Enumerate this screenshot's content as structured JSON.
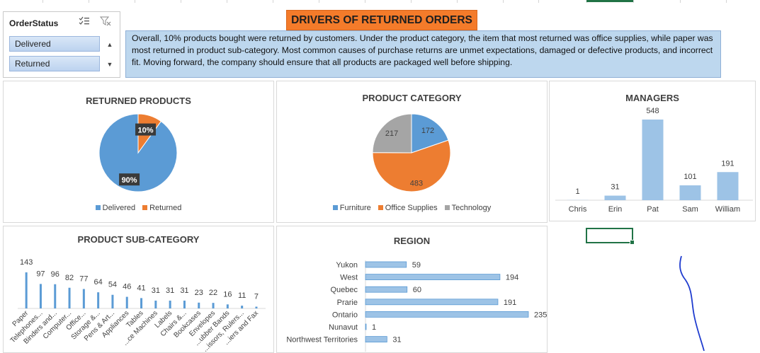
{
  "slicer": {
    "title": "OrderStatus",
    "icons": [
      "multi-select-icon",
      "clear-filter-icon"
    ],
    "items": [
      "Delivered",
      "Returned"
    ]
  },
  "header": {
    "title": "DRIVERS OF RETURNED ORDERS"
  },
  "summary": "Overall, 10% products bought were returned by customers. Under the product category, the item that  most returned was office supplies, while paper was most returned in product sub-category. Most common causes of purchase returns are unmet expectations, damaged or defective products, and incorrect fit. Moving forward, the company should ensure that all products are packaged well before shipping.",
  "colors": {
    "blue": "#5b9bd5",
    "orange": "#ed7d31",
    "gray": "#a5a5a5",
    "accent": "#217346"
  },
  "chart_data": [
    {
      "type": "pie",
      "title": "RETURNED PRODUCTS",
      "labels": [
        "Delivered",
        "Returned"
      ],
      "values": [
        90,
        10
      ],
      "data_labels": [
        "90%",
        "10%"
      ],
      "legend": "bottom"
    },
    {
      "type": "pie",
      "title": "PRODUCT CATEGORY",
      "labels": [
        "Furniture",
        "Office Supplies",
        "Technology"
      ],
      "values": [
        172,
        483,
        217
      ],
      "data_labels": [
        "172",
        "483",
        "217"
      ],
      "legend": "bottom"
    },
    {
      "type": "bar",
      "title": "MANAGERS",
      "categories": [
        "Chris",
        "Erin",
        "Pat",
        "Sam",
        "William"
      ],
      "values": [
        1,
        31,
        548,
        101,
        191
      ],
      "data_labels": [
        "1",
        "31",
        "548",
        "101",
        "191"
      ],
      "ylim": [
        0,
        548
      ]
    },
    {
      "type": "bar",
      "title": "PRODUCT SUB-CATEGORY",
      "categories": [
        "Paper",
        "Telephones...",
        "Binders and...",
        "Computer...",
        "Office...",
        "Storage &...",
        "Pens & Art...",
        "Appliances",
        "Tables",
        "...ce Machines",
        "Labels",
        "Chairs &...",
        "Bookcases",
        "Envelopes",
        "...ubber Bands",
        "...issors, Rulers...",
        "...iers and Fax"
      ],
      "values": [
        143,
        97,
        96,
        82,
        77,
        64,
        54,
        46,
        41,
        31,
        31,
        31,
        23,
        22,
        16,
        11,
        7
      ],
      "data_labels": [
        "143",
        "97",
        "96",
        "82",
        "77",
        "64",
        "54",
        "46",
        "41",
        "31",
        "31",
        "31",
        "23",
        "22",
        "16",
        "11",
        "7"
      ],
      "ylim": [
        0,
        143
      ]
    },
    {
      "type": "bar",
      "orientation": "horizontal",
      "title": "REGION",
      "categories": [
        "Yukon",
        "West",
        "Quebec",
        "Prarie",
        "Ontario",
        "Nunavut",
        "Northwest Territories"
      ],
      "values": [
        59,
        194,
        60,
        191,
        235,
        1,
        31
      ],
      "data_labels": [
        "59",
        "194",
        "60",
        "191",
        "235",
        "1",
        "31"
      ],
      "xlim": [
        0,
        235
      ]
    }
  ]
}
